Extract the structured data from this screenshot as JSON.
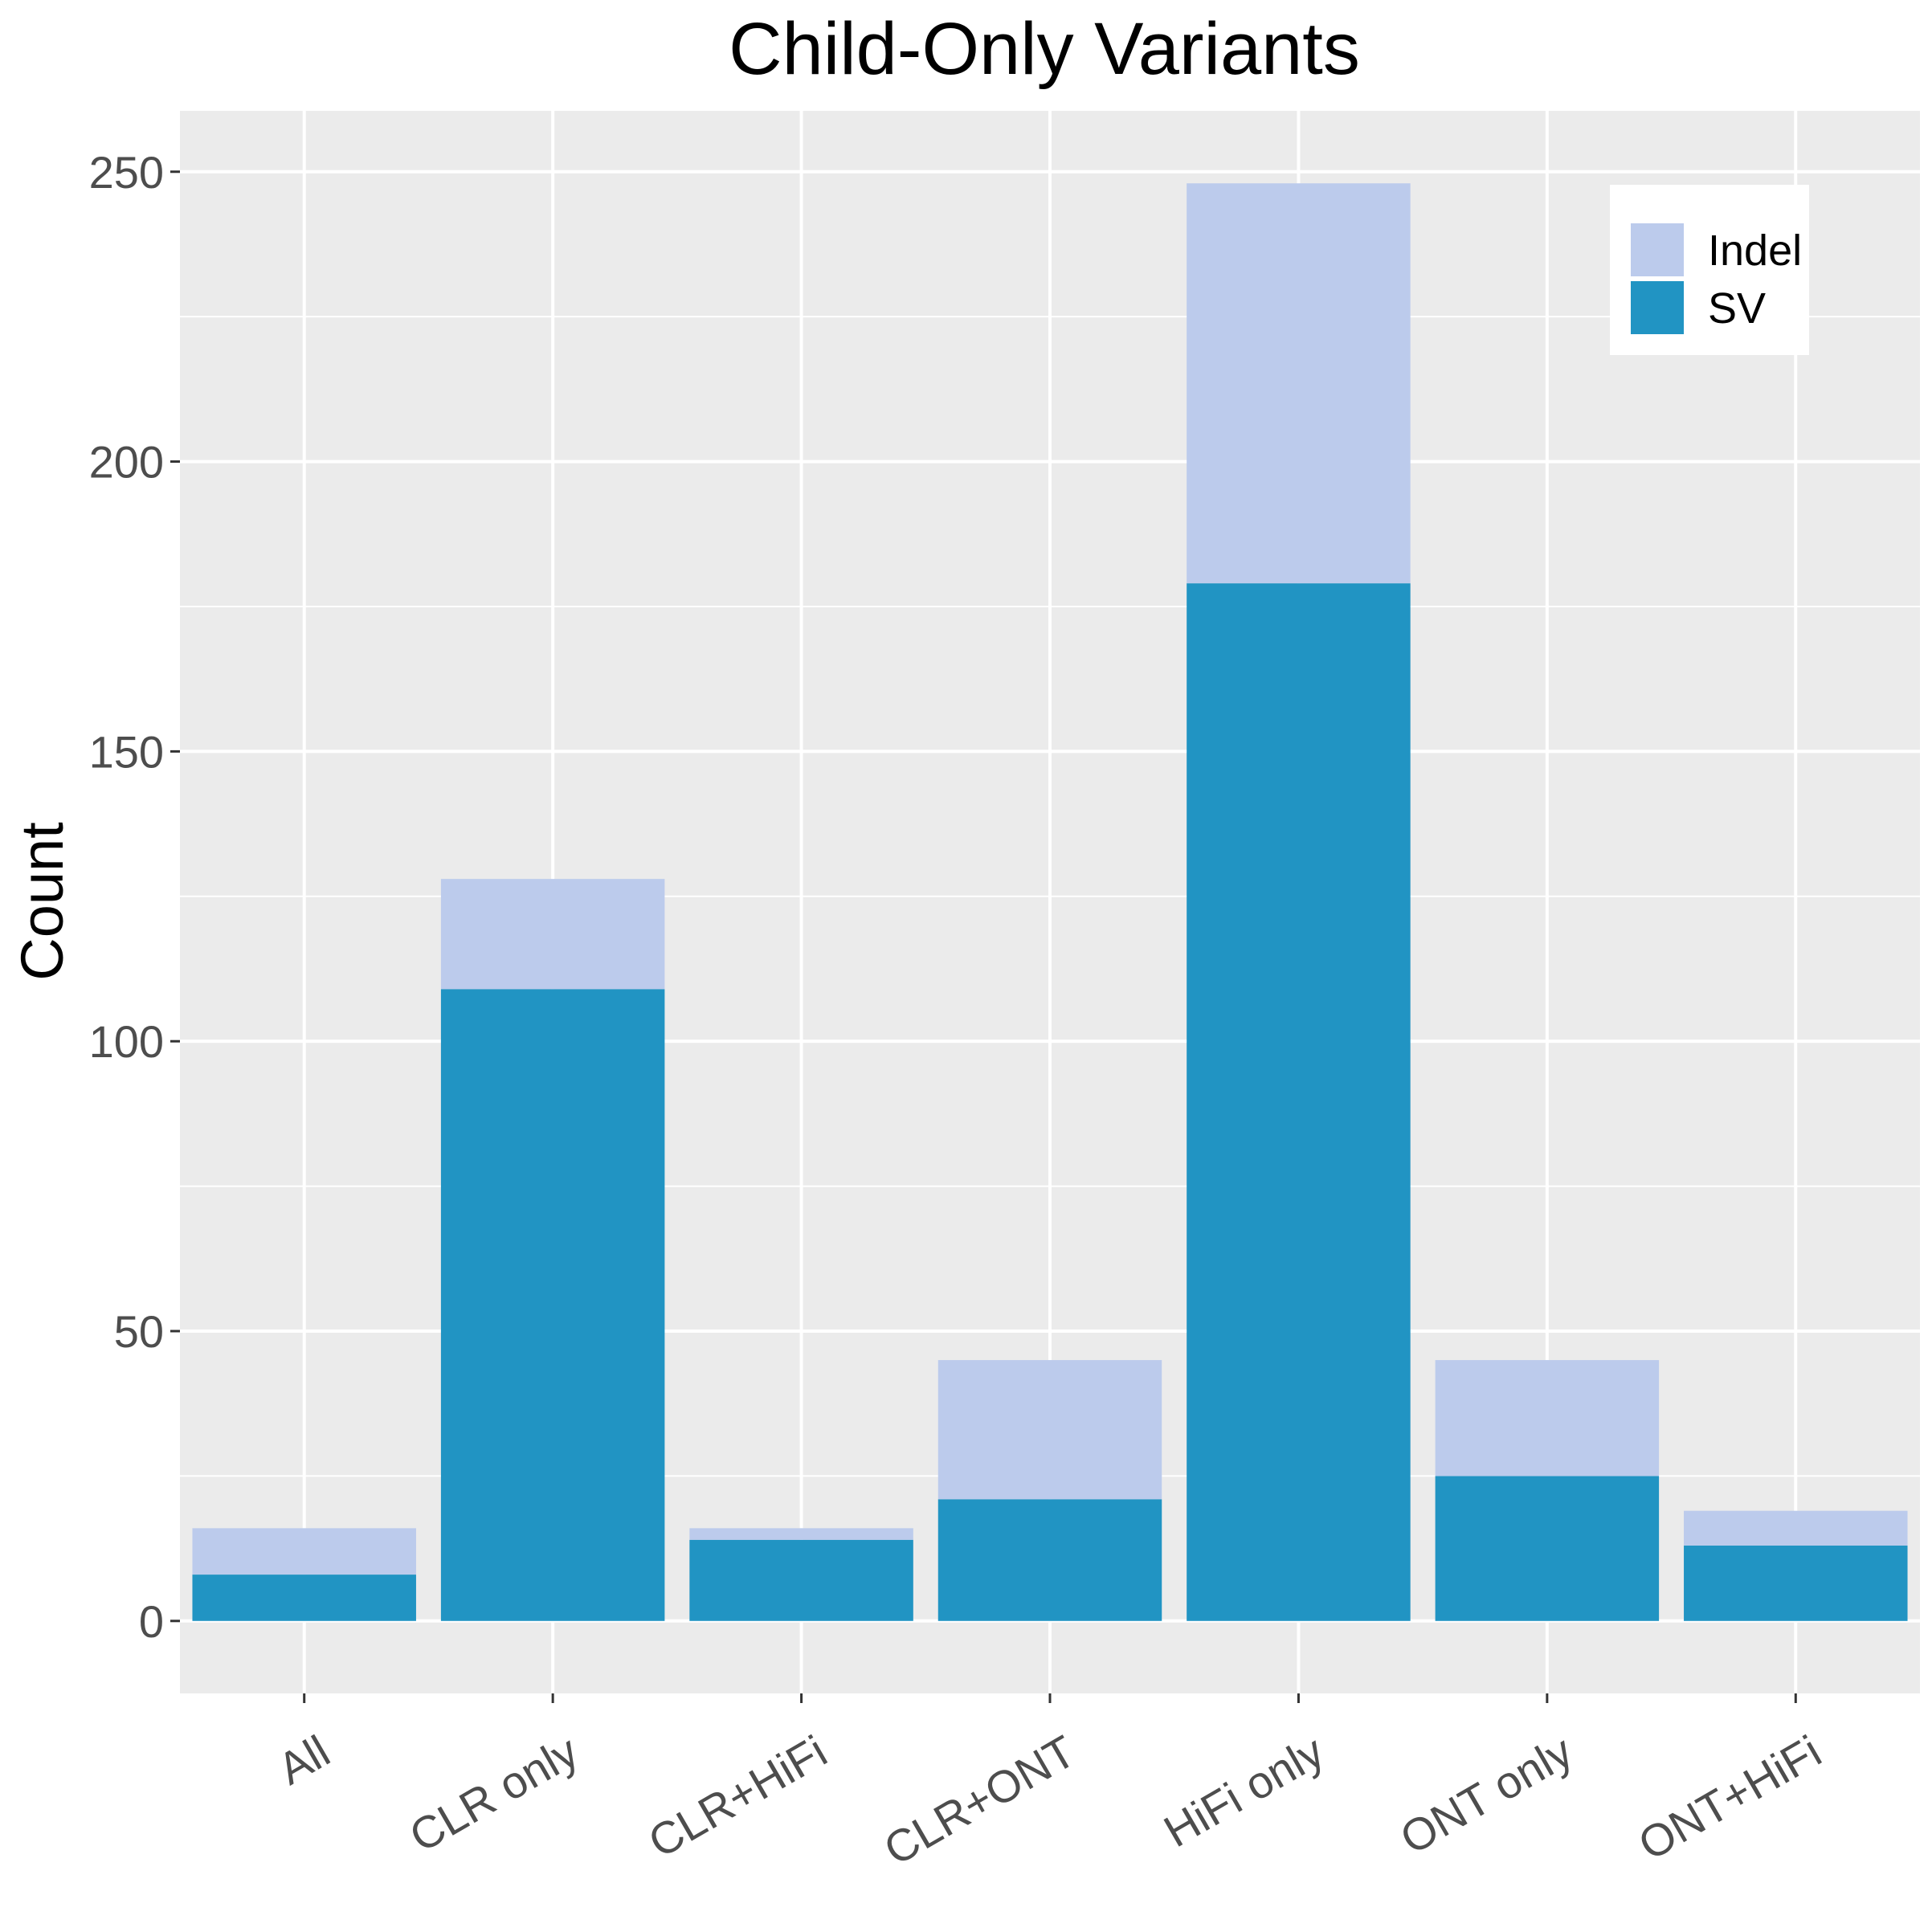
{
  "chart_data": {
    "type": "bar",
    "stacked": true,
    "title": "Child-Only Variants",
    "xlabel": "",
    "ylabel": "Count",
    "categories": [
      "All",
      "CLR only",
      "CLR+HiFi",
      "CLR+ONT",
      "HiFi only",
      "ONT only",
      "ONT+HiFi"
    ],
    "series": [
      {
        "name": "SV",
        "color": "#2194c3",
        "values": [
          8,
          109,
          14,
          21,
          179,
          25,
          13
        ]
      },
      {
        "name": "Indel",
        "color": "#bccbec",
        "values": [
          8,
          19,
          2,
          24,
          69,
          20,
          6
        ]
      }
    ],
    "legend_order": [
      "Indel",
      "SV"
    ],
    "yticks": [
      0,
      50,
      100,
      150,
      200,
      250
    ],
    "ylim": [
      -12.5,
      260.5
    ],
    "grid": true,
    "legend_position": "top-right",
    "colors": {
      "panel": "#ebebeb",
      "grid": "#ffffff",
      "tick_text": "#4d4d4d"
    }
  }
}
